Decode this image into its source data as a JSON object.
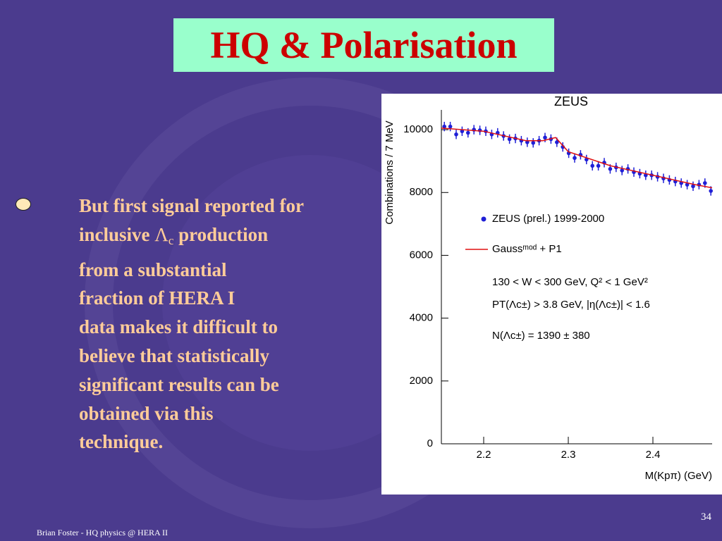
{
  "title": "HQ & Polarisation",
  "bullet": {
    "line1": "But first signal reported for",
    "line2": {
      "before": "inclusive ",
      "symbol": "Λ",
      "subscript": "c",
      "after": " production"
    },
    "rest": [
      "from a substantial",
      "fraction of HERA I",
      "data makes it difficult to",
      "believe that statistically",
      "significant results can be",
      "obtained via this",
      "technique."
    ]
  },
  "footer": "Brian Foster - HQ physics @ HERA II",
  "page_number": "34",
  "chart_data": {
    "type": "scatter",
    "title": "ZEUS",
    "x_label": "M(Kpπ)  (GeV)",
    "y_label": "Combinations / 7 MeV",
    "annotations": [
      "130 < W < 300 GeV, Q² < 1 GeV²",
      "PT(Λc±) > 3.8 GeV,  |η(Λc±)| < 1.6",
      "N(Λc±) = 1390 ± 380"
    ],
    "xlim": [
      2.15,
      2.47
    ],
    "xticks": [
      2.2,
      2.3,
      2.4
    ],
    "ylim": [
      0,
      10630
    ],
    "yticks": [
      0,
      2000,
      4000,
      6000,
      8000,
      10000
    ],
    "series": [
      {
        "name": "ZEUS (prel.) 1999-2000",
        "color": "#1f1fd6",
        "mode": "markers",
        "x": [
          2.1535,
          2.1605,
          2.1675,
          2.1745,
          2.1815,
          2.1885,
          2.1955,
          2.2025,
          2.2095,
          2.2165,
          2.2235,
          2.2305,
          2.2375,
          2.2445,
          2.2515,
          2.2585,
          2.2655,
          2.2725,
          2.2795,
          2.2865,
          2.2935,
          2.3005,
          2.3075,
          2.3145,
          2.3215,
          2.3285,
          2.3355,
          2.3425,
          2.3495,
          2.3565,
          2.3635,
          2.3705,
          2.3775,
          2.3845,
          2.3915,
          2.3985,
          2.4055,
          2.4125,
          2.4195,
          2.4265,
          2.4335,
          2.4405,
          2.4475,
          2.4545,
          2.4615,
          2.4685
        ],
        "values": [
          10100,
          10100,
          9850,
          9950,
          9900,
          10000,
          9980,
          9950,
          9850,
          9900,
          9800,
          9700,
          9720,
          9650,
          9600,
          9580,
          9650,
          9750,
          9700,
          9600,
          9450,
          9250,
          9100,
          9200,
          9050,
          8850,
          8850,
          8950,
          8750,
          8800,
          8700,
          8750,
          8650,
          8600,
          8550,
          8550,
          8500,
          8450,
          8400,
          8350,
          8300,
          8250,
          8200,
          8250,
          8300,
          8050
        ],
        "errors": [
          150,
          150,
          150,
          150,
          150,
          150,
          150,
          150,
          150,
          150,
          150,
          150,
          150,
          150,
          150,
          150,
          150,
          150,
          150,
          150,
          150,
          150,
          150,
          150,
          150,
          150,
          150,
          150,
          150,
          150,
          150,
          150,
          150,
          150,
          150,
          150,
          150,
          150,
          150,
          150,
          150,
          150,
          150,
          150,
          150,
          150
        ]
      },
      {
        "name": "Gaussᵐᵒᵈ + P1",
        "color": "#e01010",
        "mode": "line",
        "x": [
          2.15,
          2.2,
          2.25,
          2.27,
          2.285,
          2.3,
          2.35,
          2.4,
          2.45,
          2.47
        ],
        "values": [
          10050,
          9950,
          9650,
          9650,
          9750,
          9300,
          8850,
          8550,
          8250,
          8150
        ]
      }
    ]
  }
}
